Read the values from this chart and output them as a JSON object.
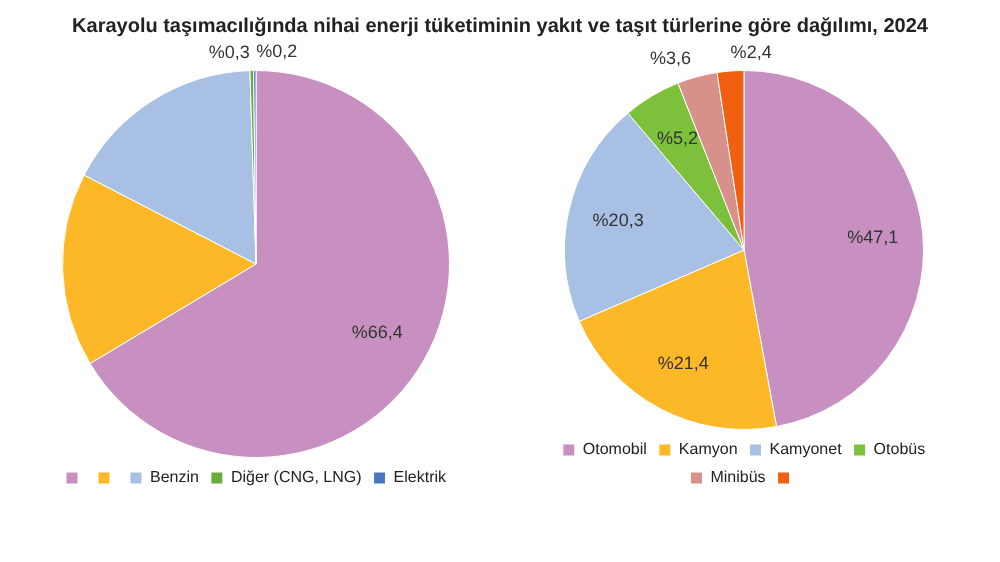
{
  "chart_data": [
    {
      "type": "pie",
      "title": "Karayolu taşımacılığında nihai enerji tüketiminin yakıt ve taşıt türlerine göre dağılımı, 2024",
      "categories": [
        null,
        null,
        "Benzin",
        "Diğer (CNG, LNG)",
        "Elektrik"
      ],
      "values": [
        66.4,
        16.2,
        16.9,
        0.3,
        0.2
      ],
      "value_labels": [
        "%66,4",
        null,
        null,
        "%0,3",
        "%0,2"
      ],
      "colors": [
        "#c890c0",
        "#fdb827",
        "#a8c0e4",
        "#6aaa3a",
        "#4a78c0"
      ],
      "legend": "bottom"
    },
    {
      "type": "pie",
      "categories": [
        "Otomobil",
        "Kamyon",
        "Kamyonet",
        "Otobüs",
        "Minibüs",
        null
      ],
      "values": [
        47.1,
        21.4,
        20.3,
        5.2,
        3.6,
        2.4
      ],
      "value_labels": [
        "%47,1",
        "%21,4",
        "%20,3",
        "%5,2",
        "%3,6",
        "%2,4"
      ],
      "colors": [
        "#c890c0",
        "#fdb827",
        "#a8c0e4",
        "#7cc03c",
        "#d8908a",
        "#f06010"
      ],
      "legend": "bottom"
    }
  ]
}
